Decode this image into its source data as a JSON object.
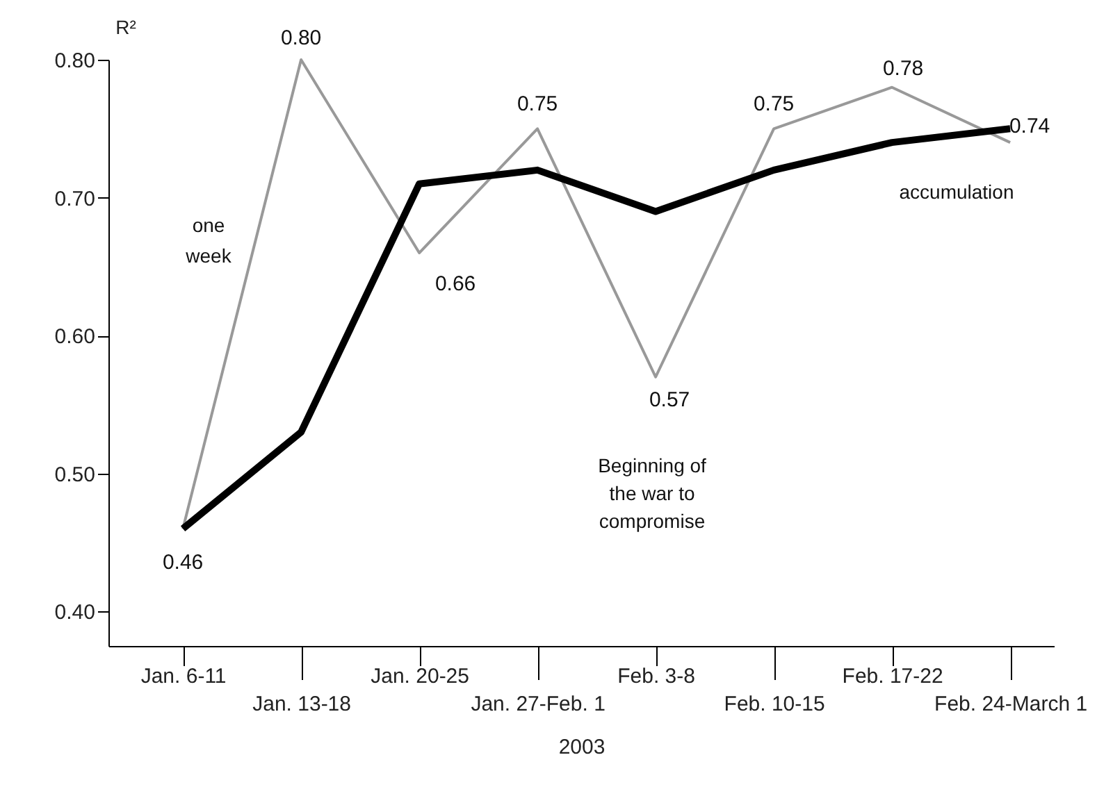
{
  "chart_data": {
    "type": "line",
    "xlabel": "2003",
    "ylabel": "R²",
    "categories": [
      "Jan. 6-11",
      "Jan. 13-18",
      "Jan. 20-25",
      "Jan. 27-Feb. 1",
      "Feb. 3-8",
      "Feb. 10-15",
      "Feb. 17-22",
      "Feb. 24-March 1"
    ],
    "series": [
      {
        "name": "one week",
        "color": "#999999",
        "values": [
          0.46,
          0.8,
          0.66,
          0.75,
          0.57,
          0.75,
          0.78,
          0.74
        ],
        "value_labels": [
          "0.46",
          "0.80",
          "0.66",
          "0.75",
          "0.57",
          "0.75",
          "0.78",
          "0.74"
        ]
      },
      {
        "name": "accumulation",
        "color": "#000000",
        "values": [
          0.46,
          0.53,
          0.71,
          0.72,
          0.69,
          0.72,
          0.74,
          0.75
        ]
      }
    ],
    "ylim": [
      0.375,
      0.8
    ],
    "yticks": [
      {
        "value": 0.4,
        "label": "0.40"
      },
      {
        "value": 0.5,
        "label": "0.50"
      },
      {
        "value": 0.6,
        "label": "0.60"
      },
      {
        "value": 0.7,
        "label": "0.70"
      },
      {
        "value": 0.8,
        "label": "0.80"
      }
    ],
    "annotations": [
      "Beginning of the war to compromise"
    ],
    "grid": false,
    "marker": "none",
    "line_style": "solid"
  }
}
